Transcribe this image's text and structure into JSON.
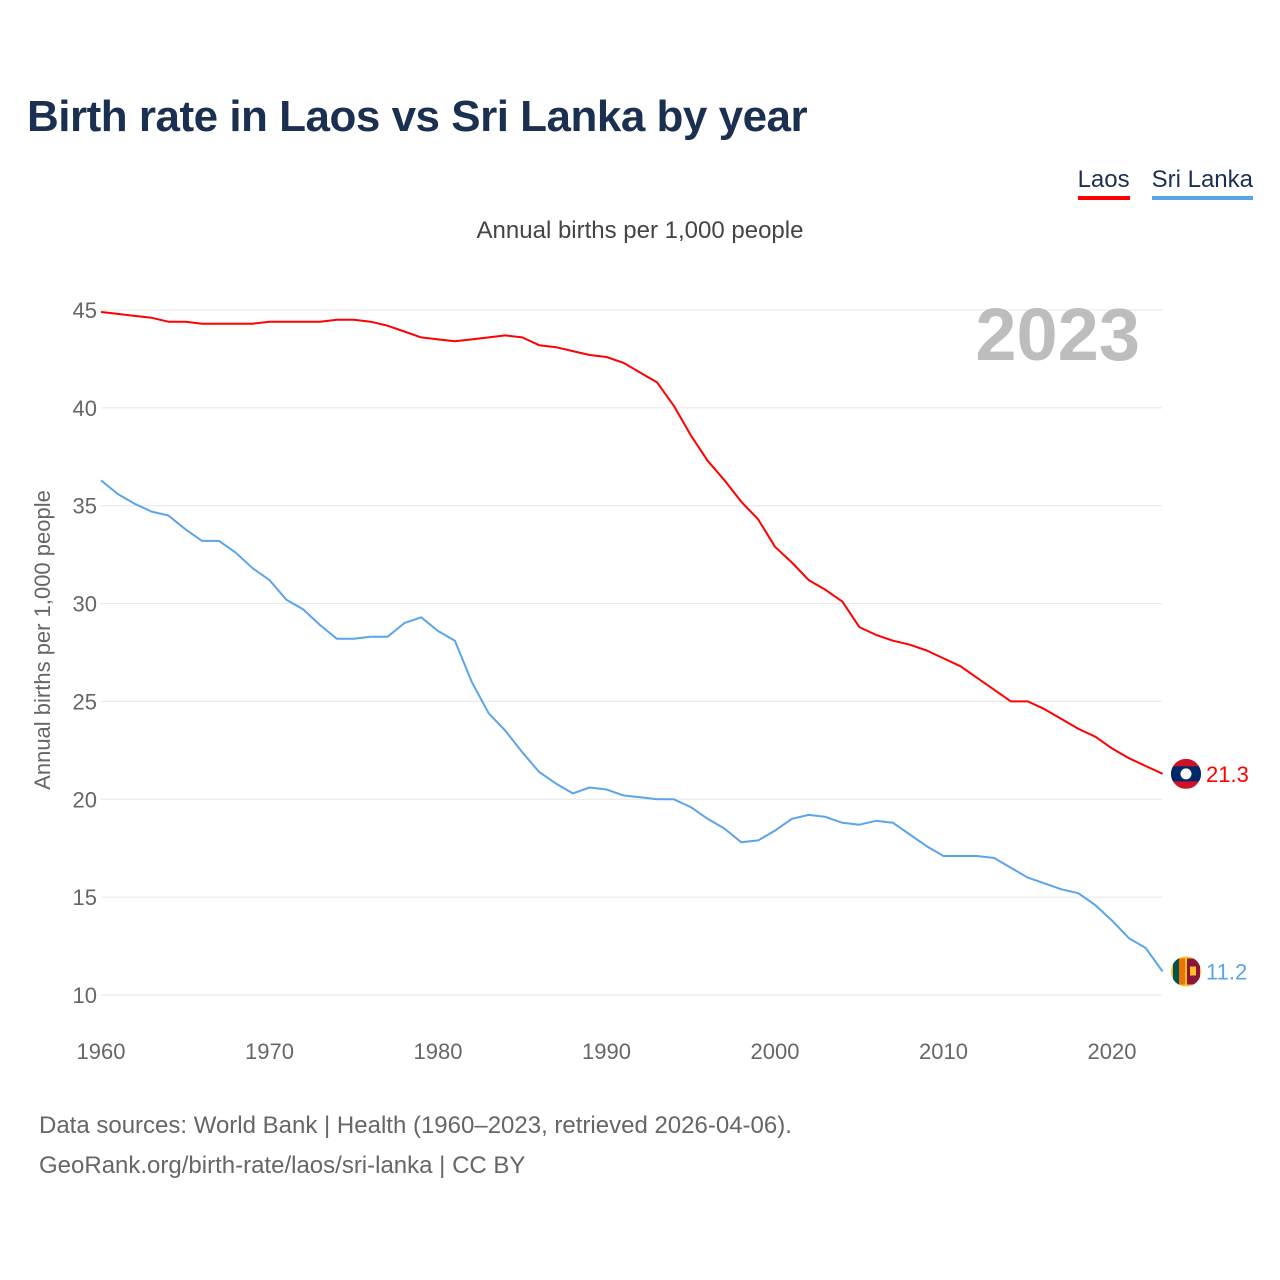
{
  "title": "Birth rate in Laos vs Sri Lanka by year",
  "subtitle": "Annual births per 1,000 people",
  "year_watermark": "2023",
  "source_line1": "Data sources: World Bank | Health (1960–2023, retrieved 2026-04-06).",
  "source_line2": "GeoRank.org/birth-rate/laos/sri-lanka | CC BY",
  "chart_data": {
    "type": "line",
    "title": "Birth rate in Laos vs Sri Lanka by year",
    "xlabel": "",
    "ylabel": "Annual births per 1,000 people",
    "xlim": [
      1960,
      2023
    ],
    "ylim": [
      10,
      45
    ],
    "xticks": [
      1960,
      1970,
      1980,
      1990,
      2000,
      2010,
      2020
    ],
    "yticks": [
      10,
      15,
      20,
      25,
      30,
      35,
      40,
      45
    ],
    "grid": true,
    "legend_position": "top-right",
    "x_start": 1960,
    "series": [
      {
        "name": "Laos",
        "color": "#ff0000",
        "end_label": "21.3",
        "flag": "laos-flag",
        "values": [
          44.9,
          44.8,
          44.7,
          44.6,
          44.4,
          44.4,
          44.3,
          44.3,
          44.3,
          44.3,
          44.4,
          44.4,
          44.4,
          44.4,
          44.5,
          44.5,
          44.4,
          44.2,
          43.9,
          43.6,
          43.5,
          43.4,
          43.5,
          43.6,
          43.7,
          43.6,
          43.2,
          43.1,
          42.9,
          42.7,
          42.6,
          42.3,
          41.8,
          41.3,
          40.1,
          38.6,
          37.3,
          36.3,
          35.2,
          34.3,
          32.9,
          32.1,
          31.2,
          30.7,
          30.1,
          28.8,
          28.4,
          28.1,
          27.9,
          27.6,
          27.2,
          26.8,
          26.2,
          25.6,
          25.0,
          25.0,
          24.6,
          24.1,
          23.6,
          23.2,
          22.6,
          22.1,
          21.7,
          21.3
        ]
      },
      {
        "name": "Sri Lanka",
        "color": "#5ba4ea",
        "end_label": "11.2",
        "flag": "sri-lanka-flag",
        "values": [
          36.3,
          35.6,
          35.1,
          34.7,
          34.5,
          33.8,
          33.2,
          33.2,
          32.6,
          31.8,
          31.2,
          30.2,
          29.7,
          28.9,
          28.2,
          28.2,
          28.3,
          28.3,
          29.0,
          29.3,
          28.6,
          28.1,
          26.0,
          24.4,
          23.5,
          22.4,
          21.4,
          20.8,
          20.3,
          20.6,
          20.5,
          20.2,
          20.1,
          20.0,
          20.0,
          19.6,
          19.0,
          18.5,
          17.8,
          17.9,
          18.4,
          19.0,
          19.2,
          19.1,
          18.8,
          18.7,
          18.9,
          18.8,
          18.2,
          17.6,
          17.1,
          17.1,
          17.1,
          17.0,
          16.5,
          16.0,
          15.7,
          15.4,
          15.2,
          14.6,
          13.8,
          12.9,
          12.4,
          11.2
        ]
      }
    ]
  }
}
